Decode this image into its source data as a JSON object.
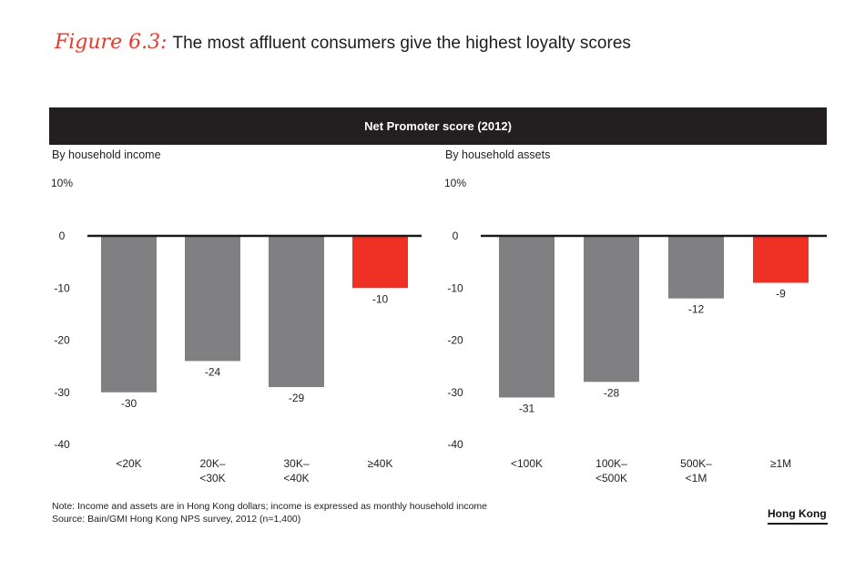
{
  "figure": {
    "label": "Figure 6.3:",
    "title": "The most affluent consumers give the highest loyalty scores"
  },
  "header": "Net Promoter score (2012)",
  "colors": {
    "bar_default": "#808083",
    "bar_highlight": "#ee3124",
    "header_bg": "#231f20",
    "accent": "#e8392b"
  },
  "chart_data": [
    {
      "type": "bar",
      "title": "By household income",
      "yticks": [
        "10%",
        "0",
        "-10",
        "-20",
        "-30",
        "-40"
      ],
      "ylim": [
        -40,
        10
      ],
      "categories": [
        [
          "<20K"
        ],
        [
          "20K–",
          "<30K"
        ],
        [
          "30K–",
          "<40K"
        ],
        [
          "≥40K"
        ]
      ],
      "values": [
        -30,
        -24,
        -29,
        -10
      ],
      "highlight": [
        false,
        false,
        false,
        true
      ]
    },
    {
      "type": "bar",
      "title": "By household assets",
      "yticks": [
        "10%",
        "0",
        "-10",
        "-20",
        "-30",
        "-40"
      ],
      "ylim": [
        -40,
        10
      ],
      "categories": [
        [
          "<100K"
        ],
        [
          "100K–",
          "<500K"
        ],
        [
          "500K–",
          "<1M"
        ],
        [
          "≥1M"
        ]
      ],
      "values": [
        -31,
        -28,
        -12,
        -9
      ],
      "highlight": [
        false,
        false,
        false,
        true
      ]
    }
  ],
  "notes": [
    "Note: Income and assets are in Hong Kong dollars; income is expressed as monthly household income",
    "Source: Bain/GMI Hong Kong NPS survey, 2012 (n=1,400)"
  ],
  "region": "Hong Kong"
}
